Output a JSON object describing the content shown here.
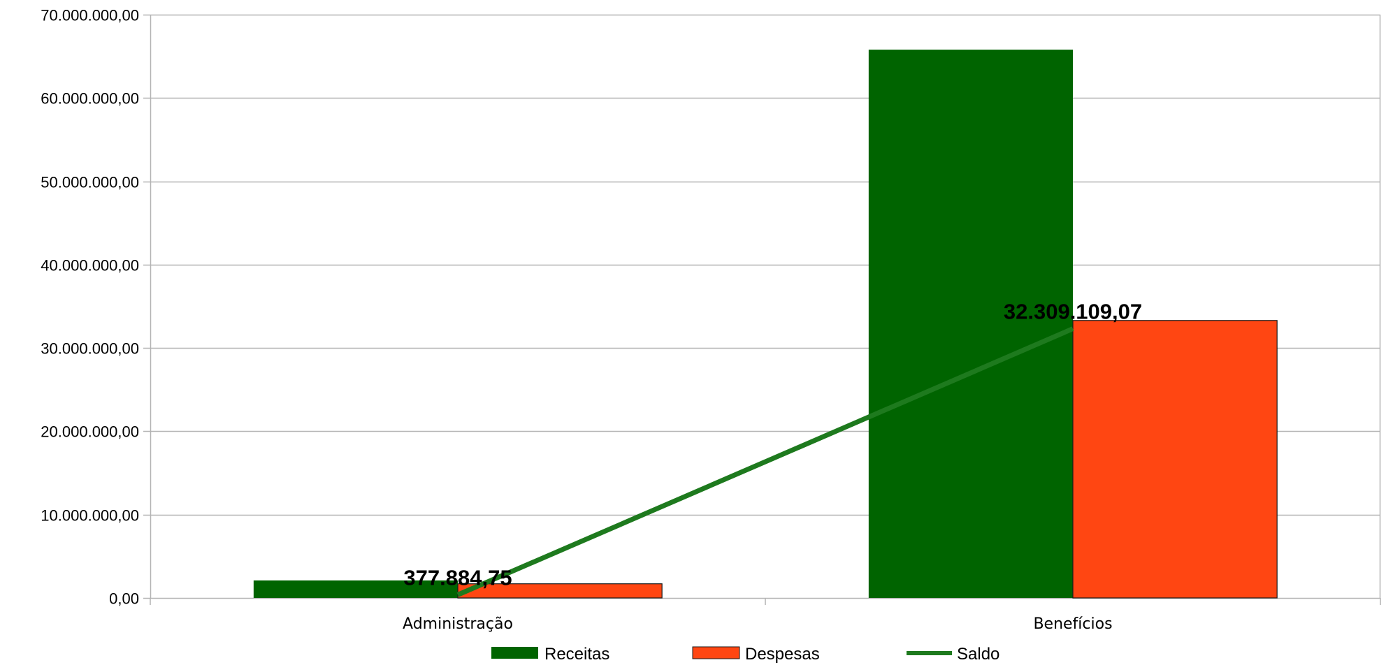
{
  "chart_data": {
    "type": "bar",
    "categories": [
      "Administração",
      "Benefícios"
    ],
    "series": [
      {
        "name": "Receitas",
        "kind": "bar",
        "values": [
          2100000,
          65800000
        ],
        "color": "#006400"
      },
      {
        "name": "Despesas",
        "kind": "bar",
        "values": [
          1700000,
          33300000
        ],
        "color": "#ff4612"
      },
      {
        "name": "Saldo",
        "kind": "line",
        "values": [
          377884.75,
          32309109.07
        ],
        "color": "#1e7a1e"
      }
    ],
    "data_labels": [
      "377.884,75",
      "32.309.109,07"
    ],
    "ylim": [
      0,
      70000000
    ],
    "y_ticks": [
      0,
      10000000,
      20000000,
      30000000,
      40000000,
      50000000,
      60000000,
      70000000
    ],
    "y_tick_labels": [
      "0,00",
      "10.000.000,00",
      "20.000.000,00",
      "30.000.000,00",
      "40.000.000,00",
      "50.000.000,00",
      "60.000.000,00",
      "70.000.000,00"
    ],
    "grid": true,
    "legend_position": "bottom"
  }
}
